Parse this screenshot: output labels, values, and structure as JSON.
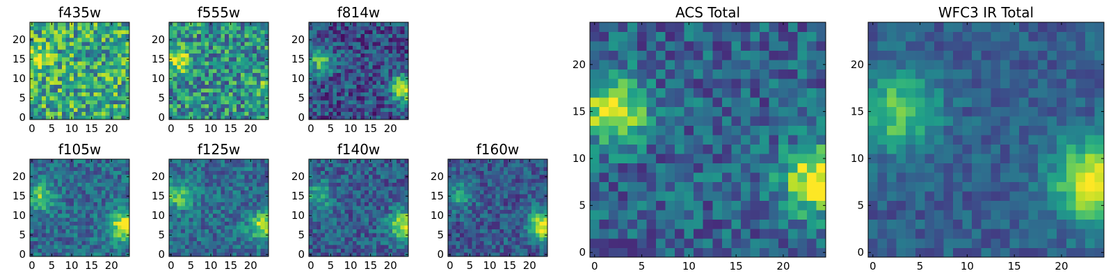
{
  "chart_data": [
    {
      "type": "heatmap",
      "title": "f435w",
      "xticks": [
        "0",
        "5",
        "10",
        "15",
        "20"
      ],
      "yticks": [
        "0",
        "5",
        "10",
        "15",
        "20"
      ],
      "xlim": [
        -0.5,
        24.5
      ],
      "ylim": [
        -0.5,
        24.5
      ],
      "grid_size": 25,
      "colormap": "viridis",
      "features": [
        {
          "x": 1.5,
          "y": 14.5,
          "amplitude": 0.35,
          "width": 2.2
        }
      ],
      "noise": 0.32,
      "baseline": 0.6,
      "seed": 11
    },
    {
      "type": "heatmap",
      "title": "f555w",
      "xticks": [
        "0",
        "5",
        "10",
        "15",
        "20"
      ],
      "yticks": [
        "0",
        "5",
        "10",
        "15",
        "20"
      ],
      "xlim": [
        -0.5,
        24.5
      ],
      "ylim": [
        -0.5,
        24.5
      ],
      "grid_size": 25,
      "colormap": "viridis",
      "features": [
        {
          "x": 2,
          "y": 14.5,
          "amplitude": 0.45,
          "width": 2.2
        },
        {
          "x": 24,
          "y": 7.5,
          "amplitude": 0.25,
          "width": 2
        }
      ],
      "noise": 0.3,
      "baseline": 0.5,
      "seed": 23
    },
    {
      "type": "heatmap",
      "title": "f814w",
      "xticks": [
        "0",
        "5",
        "10",
        "15",
        "20"
      ],
      "yticks": [
        "0",
        "5",
        "10",
        "15",
        "20"
      ],
      "xlim": [
        -0.5,
        24.5
      ],
      "ylim": [
        -0.5,
        24.5
      ],
      "grid_size": 25,
      "colormap": "viridis",
      "features": [
        {
          "x": 2.5,
          "y": 14.5,
          "amplitude": 0.45,
          "width": 2.2
        },
        {
          "x": 23.5,
          "y": 7.5,
          "amplitude": 0.75,
          "width": 2.3
        }
      ],
      "noise": 0.22,
      "baseline": 0.25,
      "seed": 37
    },
    {
      "type": "heatmap",
      "title": "f105w",
      "xticks": [
        "0",
        "5",
        "10",
        "15",
        "20"
      ],
      "yticks": [
        "0",
        "5",
        "10",
        "15",
        "20"
      ],
      "xlim": [
        -0.5,
        24.5
      ],
      "ylim": [
        -0.5,
        24.5
      ],
      "grid_size": 25,
      "colormap": "viridis",
      "features": [
        {
          "x": 2,
          "y": 15,
          "amplitude": 0.4,
          "width": 2.5
        },
        {
          "x": 23.5,
          "y": 7.5,
          "amplitude": 0.65,
          "width": 2.8
        }
      ],
      "noise": 0.18,
      "baseline": 0.35,
      "seed": 41
    },
    {
      "type": "heatmap",
      "title": "f125w",
      "xticks": [
        "0",
        "5",
        "10",
        "15",
        "20"
      ],
      "yticks": [
        "0",
        "5",
        "10",
        "15",
        "20"
      ],
      "xlim": [
        -0.5,
        24.5
      ],
      "ylim": [
        -0.5,
        24.5
      ],
      "grid_size": 25,
      "colormap": "viridis",
      "features": [
        {
          "x": 2,
          "y": 15,
          "amplitude": 0.4,
          "width": 2.5
        },
        {
          "x": 23.5,
          "y": 7.5,
          "amplitude": 0.6,
          "width": 2.6
        }
      ],
      "noise": 0.18,
      "baseline": 0.35,
      "seed": 53
    },
    {
      "type": "heatmap",
      "title": "f140w",
      "xticks": [
        "0",
        "5",
        "10",
        "15",
        "20"
      ],
      "yticks": [
        "0",
        "5",
        "10",
        "15",
        "20"
      ],
      "xlim": [
        -0.5,
        24.5
      ],
      "ylim": [
        -0.5,
        24.5
      ],
      "grid_size": 25,
      "colormap": "viridis",
      "features": [
        {
          "x": 2,
          "y": 15,
          "amplitude": 0.35,
          "width": 2.5
        },
        {
          "x": 23.5,
          "y": 7.5,
          "amplitude": 0.65,
          "width": 2.6
        }
      ],
      "noise": 0.18,
      "baseline": 0.3,
      "seed": 67
    },
    {
      "type": "heatmap",
      "title": "f160w",
      "xticks": [
        "0",
        "5",
        "10",
        "15",
        "20"
      ],
      "yticks": [
        "0",
        "5",
        "10",
        "15",
        "20"
      ],
      "xlim": [
        -0.5,
        24.5
      ],
      "ylim": [
        -0.5,
        24.5
      ],
      "grid_size": 25,
      "colormap": "viridis",
      "features": [
        {
          "x": 2,
          "y": 15,
          "amplitude": 0.3,
          "width": 2.5
        },
        {
          "x": 23.5,
          "y": 7.5,
          "amplitude": 0.7,
          "width": 2.6
        }
      ],
      "noise": 0.17,
      "baseline": 0.28,
      "seed": 79
    },
    {
      "type": "heatmap",
      "title": "ACS Total",
      "xticks": [
        "0",
        "5",
        "10",
        "15",
        "20"
      ],
      "yticks": [
        "0",
        "5",
        "10",
        "15",
        "20"
      ],
      "xlim": [
        -0.5,
        24.5
      ],
      "ylim": [
        -0.5,
        24.5
      ],
      "grid_size": 25,
      "colormap": "viridis",
      "features": [
        {
          "x": 2,
          "y": 15,
          "amplitude": 0.7,
          "width": 2.3
        },
        {
          "x": 23.5,
          "y": 7.5,
          "amplitude": 0.75,
          "width": 2.4
        }
      ],
      "noise": 0.2,
      "baseline": 0.32,
      "seed": 97
    },
    {
      "type": "heatmap",
      "title": "WFC3 IR Total",
      "xticks": [
        "0",
        "5",
        "10",
        "15",
        "20"
      ],
      "yticks": [
        "0",
        "5",
        "10",
        "15",
        "20"
      ],
      "xlim": [
        -0.5,
        24.5
      ],
      "ylim": [
        -0.5,
        24.5
      ],
      "grid_size": 25,
      "colormap": "viridis",
      "features": [
        {
          "x": 2.5,
          "y": 15,
          "amplitude": 0.45,
          "width": 3
        },
        {
          "x": 23.5,
          "y": 7.5,
          "amplitude": 0.7,
          "width": 3
        }
      ],
      "noise": 0.12,
      "baseline": 0.3,
      "seed": 113
    }
  ]
}
